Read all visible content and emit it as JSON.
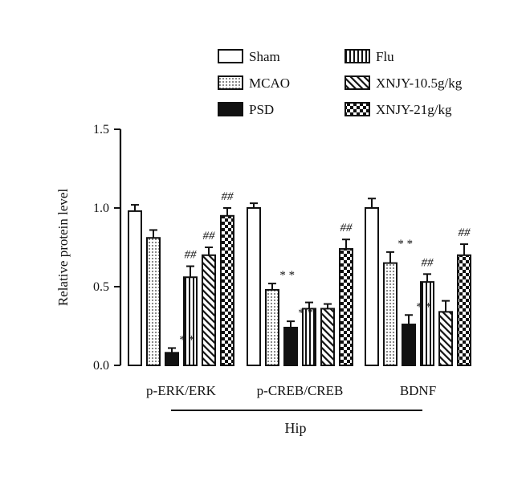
{
  "chart_data": {
    "type": "bar",
    "title": "",
    "ylabel": "Relative protein level",
    "xlabel": "",
    "group_label": "Hip",
    "ylim": [
      0,
      1.5
    ],
    "yticks": [
      "0.0",
      "0.5",
      "1.0",
      "1.5"
    ],
    "ytick_values": [
      0,
      0.5,
      1.0,
      1.5
    ],
    "grid": false,
    "legend_position": "top",
    "categories": [
      "p-ERK/ERK",
      "p-CREB/CREB",
      "BDNF"
    ],
    "series": [
      {
        "name": "Sham",
        "pattern": "open",
        "values": [
          0.98,
          1.0,
          1.0
        ],
        "errors": [
          0.04,
          0.03,
          0.06
        ],
        "sig": [
          "",
          "",
          ""
        ]
      },
      {
        "name": "MCAO",
        "pattern": "dots",
        "values": [
          0.81,
          0.48,
          0.65
        ],
        "errors": [
          0.05,
          0.04,
          0.07
        ],
        "sig": [
          "",
          "**",
          "**"
        ]
      },
      {
        "name": "PSD",
        "pattern": "solid",
        "values": [
          0.08,
          0.24,
          0.26
        ],
        "errors": [
          0.03,
          0.04,
          0.06
        ],
        "sig": [
          "**",
          "**",
          "**"
        ]
      },
      {
        "name": "Flu",
        "pattern": "vlines",
        "values": [
          0.56,
          0.36,
          0.53
        ],
        "errors": [
          0.07,
          0.04,
          0.05
        ],
        "sig": [
          "##",
          "",
          "##"
        ]
      },
      {
        "name": "XNJY-10.5g/kg",
        "pattern": "diag",
        "values": [
          0.7,
          0.36,
          0.34
        ],
        "errors": [
          0.05,
          0.03,
          0.07
        ],
        "sig": [
          "##",
          "",
          ""
        ]
      },
      {
        "name": "XNJY-21g/kg",
        "pattern": "checker",
        "values": [
          0.95,
          0.74,
          0.7
        ],
        "errors": [
          0.05,
          0.06,
          0.07
        ],
        "sig": [
          "##",
          "##",
          "##"
        ]
      }
    ]
  }
}
